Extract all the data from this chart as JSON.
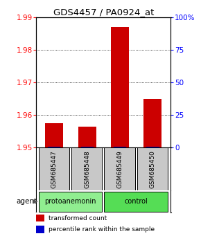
{
  "title": "GDS4457 / PA0924_at",
  "samples": [
    "GSM685447",
    "GSM685448",
    "GSM685449",
    "GSM685450"
  ],
  "red_values": [
    1.9575,
    1.9565,
    1.987,
    1.965
  ],
  "blue_values": [
    1.9503,
    1.9503,
    1.9503,
    1.9503
  ],
  "ylim": [
    1.95,
    1.99
  ],
  "yticks_left": [
    1.95,
    1.96,
    1.97,
    1.98,
    1.99
  ],
  "yticks_right": [
    0,
    25,
    50,
    75,
    100
  ],
  "yticks_right_pos": [
    1.95,
    1.96,
    1.97,
    1.98,
    1.99
  ],
  "groups": [
    {
      "label": "protoanemonin",
      "samples": [
        0,
        1
      ],
      "color": "#90EE90"
    },
    {
      "label": "control",
      "samples": [
        2,
        3
      ],
      "color": "#55DD55"
    }
  ],
  "bar_color": "#CC0000",
  "blue_color": "#0000CC",
  "bar_width": 0.55,
  "sample_bg": "#C8C8C8",
  "legend_red_label": "transformed count",
  "legend_blue_label": "percentile rank within the sample",
  "agent_label": "agent"
}
